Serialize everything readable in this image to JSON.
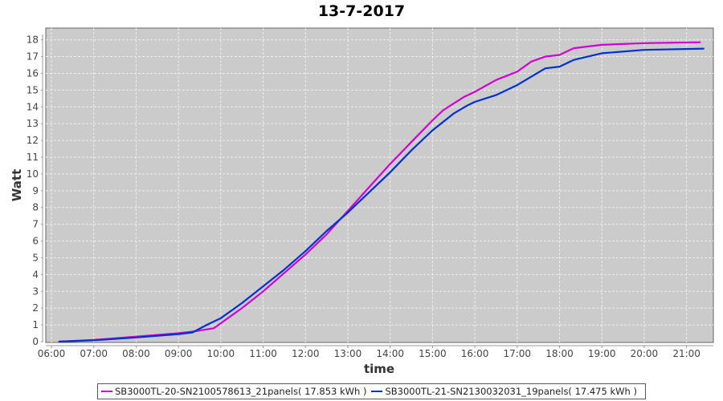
{
  "chart_data": {
    "type": "line",
    "title": "13-7-2017",
    "xlabel": "time",
    "ylabel": "Watt",
    "xlim": [
      "05:52",
      "21:38"
    ],
    "ylim": [
      0,
      18.7
    ],
    "grid": true,
    "legend_position": "bottom",
    "x_ticks": [
      "06:00",
      "07:00",
      "08:00",
      "09:00",
      "10:00",
      "11:00",
      "12:00",
      "13:00",
      "14:00",
      "15:00",
      "16:00",
      "17:00",
      "18:00",
      "19:00",
      "20:00",
      "21:00"
    ],
    "y_ticks": [
      0,
      1,
      2,
      3,
      4,
      5,
      6,
      7,
      8,
      9,
      10,
      11,
      12,
      13,
      14,
      15,
      16,
      17,
      18
    ],
    "series": [
      {
        "name": "SB3000TL-20-SN2100578613_21panels( 17.853 kWh )",
        "color": "#d000d0",
        "x": [
          "06:10",
          "07:00",
          "08:00",
          "09:00",
          "09:20",
          "09:50",
          "10:00",
          "10:30",
          "11:00",
          "11:30",
          "12:00",
          "12:30",
          "13:00",
          "13:30",
          "14:00",
          "14:30",
          "15:00",
          "15:15",
          "15:30",
          "15:45",
          "16:00",
          "16:30",
          "17:00",
          "17:20",
          "17:40",
          "18:00",
          "18:20",
          "19:00",
          "20:00",
          "21:20"
        ],
        "y": [
          0,
          0.1,
          0.3,
          0.5,
          0.6,
          0.8,
          1.1,
          2.0,
          3.0,
          4.1,
          5.2,
          6.4,
          7.8,
          9.2,
          10.6,
          11.9,
          13.2,
          13.8,
          14.2,
          14.6,
          14.9,
          15.6,
          16.1,
          16.7,
          17.0,
          17.1,
          17.5,
          17.7,
          17.8,
          17.853
        ]
      },
      {
        "name": "SB3000TL-21-SN2130032031_19panels( 17.475 kWh )",
        "color": "#0030d0",
        "x": [
          "06:10",
          "07:00",
          "08:00",
          "09:00",
          "09:20",
          "09:40",
          "10:00",
          "10:30",
          "11:00",
          "11:30",
          "12:00",
          "12:30",
          "13:00",
          "13:30",
          "14:00",
          "14:30",
          "15:00",
          "15:30",
          "15:50",
          "16:00",
          "16:30",
          "17:00",
          "17:20",
          "17:40",
          "18:00",
          "18:20",
          "19:00",
          "20:00",
          "21:25"
        ],
        "y": [
          0,
          0.08,
          0.25,
          0.45,
          0.55,
          1.0,
          1.4,
          2.3,
          3.3,
          4.3,
          5.4,
          6.6,
          7.7,
          8.9,
          10.1,
          11.4,
          12.6,
          13.6,
          14.1,
          14.3,
          14.7,
          15.3,
          15.8,
          16.3,
          16.4,
          16.8,
          17.2,
          17.4,
          17.475
        ]
      }
    ]
  }
}
